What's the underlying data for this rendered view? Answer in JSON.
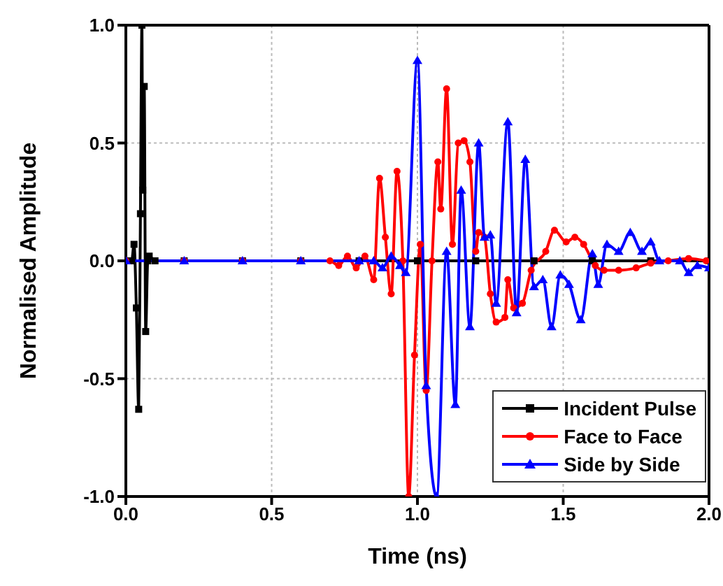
{
  "chart_data": {
    "type": "line",
    "xlabel": "Time (ns)",
    "ylabel": "Normalised Amplitude",
    "xlim": [
      0,
      2
    ],
    "ylim": [
      -1,
      1
    ],
    "xticks": [
      {
        "value": 0,
        "label": "0.0"
      },
      {
        "value": 0.5,
        "label": "0.5"
      },
      {
        "value": 1,
        "label": "1.0"
      },
      {
        "value": 1.5,
        "label": "1.5"
      },
      {
        "value": 2,
        "label": "2.0"
      }
    ],
    "yticks": [
      {
        "value": -1,
        "label": "-1.0"
      },
      {
        "value": -0.5,
        "label": "-0.5"
      },
      {
        "value": 0,
        "label": "0.0"
      },
      {
        "value": 0.5,
        "label": "0.5"
      },
      {
        "value": 1,
        "label": "1.0"
      }
    ],
    "grid": true,
    "legend": "bottom right",
    "line_style": "solid",
    "series": [
      {
        "name": "Incident Pulse",
        "color": "#000000",
        "marker": "square",
        "x": [
          0,
          0.02,
          0.028,
          0.036,
          0.044,
          0.05,
          0.055,
          0.058,
          0.063,
          0.068,
          0.075,
          0.08,
          0.1,
          0.2,
          0.4,
          0.6,
          0.8,
          1.0,
          1.2,
          1.4,
          1.6,
          1.8,
          2.0
        ],
        "values": [
          0,
          0,
          0.07,
          -0.2,
          -0.63,
          0.2,
          1.0,
          0.3,
          0.74,
          -0.3,
          0,
          0.02,
          0,
          0,
          0,
          0,
          0,
          0,
          0,
          0,
          0,
          0,
          0
        ]
      },
      {
        "name": "Face to Face",
        "color": "#ff0000",
        "marker": "circle",
        "x": [
          0,
          0.2,
          0.4,
          0.6,
          0.7,
          0.73,
          0.76,
          0.79,
          0.82,
          0.85,
          0.87,
          0.89,
          0.91,
          0.93,
          0.95,
          0.97,
          0.99,
          1.01,
          1.03,
          1.05,
          1.07,
          1.08,
          1.1,
          1.12,
          1.14,
          1.16,
          1.18,
          1.2,
          1.21,
          1.23,
          1.25,
          1.27,
          1.3,
          1.31,
          1.33,
          1.36,
          1.39,
          1.44,
          1.47,
          1.51,
          1.54,
          1.57,
          1.61,
          1.64,
          1.69,
          1.75,
          1.8,
          1.86,
          1.93,
          1.99
        ],
        "values": [
          0,
          0,
          0,
          0,
          0,
          -0.02,
          0.02,
          -0.03,
          0.02,
          -0.08,
          0.35,
          0.1,
          -0.14,
          0.38,
          0.0,
          -1.0,
          -0.4,
          0.07,
          -0.55,
          0.0,
          0.42,
          0.22,
          0.73,
          0.07,
          0.5,
          0.51,
          0.42,
          0.04,
          0.12,
          0.1,
          -0.14,
          -0.26,
          -0.24,
          -0.08,
          -0.2,
          -0.18,
          -0.04,
          0.04,
          0.13,
          0.08,
          0.1,
          0.07,
          -0.02,
          -0.04,
          -0.04,
          -0.03,
          -0.01,
          0.0,
          0.01,
          0.0
        ]
      },
      {
        "name": "Side by Side",
        "color": "#0000ff",
        "marker": "triangle",
        "x": [
          0,
          0.2,
          0.4,
          0.6,
          0.8,
          0.85,
          0.88,
          0.91,
          0.94,
          0.96,
          1.0,
          1.03,
          1.066,
          1.1,
          1.13,
          1.15,
          1.18,
          1.21,
          1.23,
          1.25,
          1.27,
          1.31,
          1.34,
          1.37,
          1.4,
          1.43,
          1.46,
          1.49,
          1.52,
          1.56,
          1.6,
          1.62,
          1.65,
          1.69,
          1.73,
          1.77,
          1.8,
          1.83,
          1.9,
          1.93,
          1.96,
          2.0
        ],
        "values": [
          0,
          0,
          0,
          0,
          0,
          0.0,
          -0.03,
          0.02,
          -0.02,
          -0.05,
          0.85,
          -0.53,
          -1.0,
          0.04,
          -0.61,
          0.3,
          -0.28,
          0.5,
          0.1,
          0.11,
          -0.18,
          0.59,
          -0.22,
          0.43,
          -0.11,
          -0.08,
          -0.28,
          -0.06,
          -0.1,
          -0.25,
          0.03,
          -0.1,
          0.07,
          0.04,
          0.12,
          0.04,
          0.08,
          0.0,
          0.0,
          -0.05,
          -0.02,
          -0.03
        ]
      }
    ]
  }
}
